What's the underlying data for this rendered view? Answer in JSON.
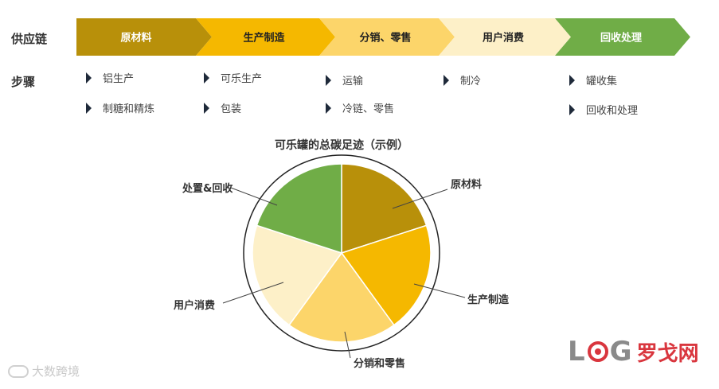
{
  "labels": {
    "supply_chain": "供应链",
    "steps": "步骤"
  },
  "chain": [
    {
      "label": "原材料",
      "color": "#b8900a"
    },
    {
      "label": "生产制造",
      "color": "#f5b800"
    },
    {
      "label": "分销、零售",
      "color": "#fcd56a"
    },
    {
      "label": "用户消费",
      "color": "#fdf0c8"
    },
    {
      "label": "回收处理",
      "color": "#70ad47"
    }
  ],
  "steps": [
    [
      "铝生产",
      "制糖和精炼"
    ],
    [
      "可乐生产",
      "包装"
    ],
    [
      "运输",
      "冷链、零售"
    ],
    [
      "制冷"
    ],
    [
      "罐收集",
      "回收和处理"
    ]
  ],
  "pie": {
    "title": "可乐罐的总碳足迹（示例）",
    "slices": [
      {
        "label": "原材料",
        "value": 20,
        "color": "#b8900a"
      },
      {
        "label": "生产制造",
        "value": 20,
        "color": "#f5b800"
      },
      {
        "label": "分销和零售",
        "value": 20,
        "color": "#fcd56a"
      },
      {
        "label": "用户消费",
        "value": 20,
        "color": "#fdf0c8"
      },
      {
        "label": "处置&回收",
        "value": 20,
        "color": "#70ad47"
      }
    ]
  },
  "logo": {
    "text_latin": "LOG",
    "text_cn": "罗戈网"
  },
  "watermark": "大数跨境"
}
